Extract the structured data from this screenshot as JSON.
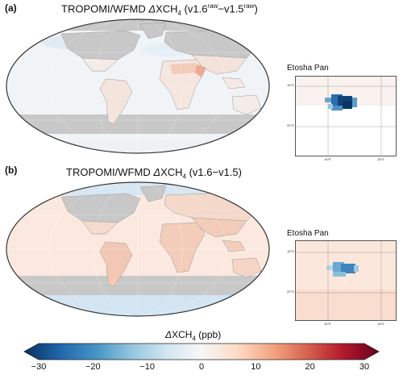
{
  "panels": [
    {
      "label": "(a)",
      "title_prefix": "TROPOMI/WFMD ",
      "title_delta": "Δ",
      "title_species": "XCH",
      "title_species_sub": "4",
      "title_open": " (v1.6",
      "title_sup1": "raw",
      "title_mid": "−v1.5",
      "title_sup2": "raw",
      "title_close": ")",
      "inset_title": "Etosha Pan",
      "inset_lat_top": "18°S",
      "inset_lat_bottom": "20°S",
      "inset_lon_left": "16°E",
      "inset_lon_right": "18°E"
    },
    {
      "label": "(b)",
      "title_prefix": "TROPOMI/WFMD ",
      "title_delta": "Δ",
      "title_species": "XCH",
      "title_species_sub": "4",
      "title_rest": " (v1.6−v1.5)",
      "inset_title": "Etosha Pan",
      "inset_lat_top": "18°S",
      "inset_lat_bottom": "20°S",
      "inset_lon_left": "16°E",
      "inset_lon_right": "18°E"
    }
  ],
  "colorbar": {
    "delta": "Δ",
    "label": "XCH",
    "label_sub": "4",
    "unit": " (ppb)",
    "ticks": [
      "−30",
      "−20",
      "−10",
      "0",
      "10",
      "20",
      "30"
    ],
    "range": [
      -30,
      30
    ],
    "colors": [
      "#053061",
      "#2166ac",
      "#4393c3",
      "#92c5de",
      "#d1e5f0",
      "#f7f7f7",
      "#fddbc7",
      "#f4a582",
      "#d6604d",
      "#b2182b",
      "#67001f"
    ]
  },
  "map_colors": {
    "no_data": "#c8c8c8",
    "coast": "#9a9a9a",
    "ocean_a": "#f1f4f7",
    "land_a": "#f6e9e3",
    "ocean_b": "#fbe9e0",
    "land_b": "#f6d9cc",
    "south_ocean_b": "#d3e5f2"
  }
}
